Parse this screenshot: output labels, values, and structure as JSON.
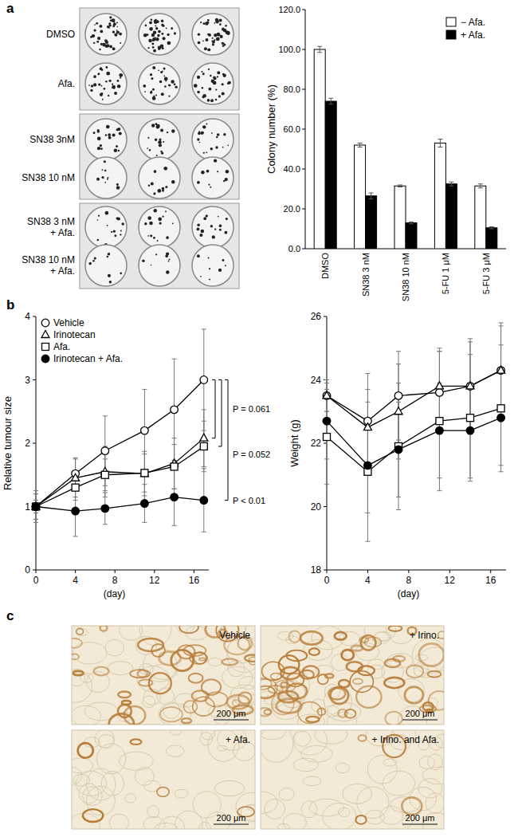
{
  "panel_labels": [
    "a",
    "b",
    "c"
  ],
  "plate_image": {
    "row_labels": [
      [
        "DMSO"
      ],
      [
        "Afa."
      ],
      [
        "SN38 3nM"
      ],
      [
        "SN38 10 nM"
      ],
      [
        "SN38 3 nM",
        "+ Afa."
      ],
      [
        "SN38 10 nM",
        "+ Afa."
      ]
    ]
  },
  "chart_data": [
    {
      "type": "bar",
      "ylabel": "Colony number (%)",
      "categories": [
        "DMSO",
        "SN38 3 nM",
        "SN38 10 nM",
        "5-FU 1 μM",
        "5-FU 3 μM"
      ],
      "series": [
        {
          "name": "− Afa.",
          "color": "#ffffff",
          "values": [
            100,
            52,
            31.5,
            53,
            31.5
          ],
          "errors": [
            1.5,
            1,
            0.5,
            2,
            1
          ]
        },
        {
          "name": "+ Afa.",
          "color": "#000000",
          "values": [
            74,
            26.5,
            13,
            32.5,
            10.5
          ],
          "errors": [
            1.5,
            1.5,
            0.5,
            1,
            0.5
          ]
        }
      ],
      "ylim": [
        0,
        120
      ],
      "yticks": [
        {
          "value": 0,
          "label": "0.0"
        },
        {
          "value": 20,
          "label": "20.0"
        },
        {
          "value": 40,
          "label": "40.0"
        },
        {
          "value": 60,
          "label": "60.0"
        },
        {
          "value": 80,
          "label": "80.0"
        },
        {
          "value": 100,
          "label": "100.0"
        },
        {
          "value": 120,
          "label": "120.0"
        }
      ],
      "legend": "upper right"
    },
    {
      "type": "line",
      "ylabel": "Relative tumour size",
      "xlabel": "(day)",
      "x": [
        0,
        4,
        7,
        11,
        14,
        17
      ],
      "series": [
        {
          "name": "Vehicle",
          "color": "#000000",
          "marker": "circle-open",
          "values": [
            1,
            1.52,
            1.88,
            2.2,
            2.53,
            3.0
          ],
          "errors": [
            0.25,
            0.25,
            0.55,
            0.65,
            0.8,
            0.8
          ]
        },
        {
          "name": "Irinotecan",
          "color": "#000000",
          "marker": "triangle-open",
          "values": [
            1,
            1.45,
            1.55,
            1.52,
            1.68,
            2.08
          ],
          "errors": [
            0.2,
            0.3,
            0.4,
            0.35,
            0.4,
            0.45
          ]
        },
        {
          "name": "Afa.",
          "color": "#000000",
          "marker": "square-open",
          "values": [
            1,
            1.3,
            1.5,
            1.53,
            1.63,
            1.95
          ],
          "errors": [
            0.1,
            0.2,
            0.25,
            0.3,
            0.35,
            0.4
          ]
        },
        {
          "name": "Irinotecan + Afa.",
          "color": "#000000",
          "marker": "circle-filled",
          "values": [
            1,
            0.93,
            0.97,
            1.05,
            1.15,
            1.1
          ],
          "errors": [
            0.2,
            0.4,
            0.25,
            0.3,
            0.45,
            0.5
          ]
        }
      ],
      "xlim": [
        0,
        17.5
      ],
      "xticks": [
        0,
        4,
        8,
        12,
        16
      ],
      "ylim": [
        0,
        4
      ],
      "yticks": [
        0,
        1,
        2,
        3,
        4
      ],
      "legend": "upper left",
      "annotations": [
        "P = 0.061",
        "P = 0.052",
        "P < 0.01"
      ]
    },
    {
      "type": "line",
      "ylabel": "Weight (g)",
      "xlabel": "(day)",
      "x": [
        0,
        4,
        7,
        11,
        14,
        17
      ],
      "series": [
        {
          "color": "#000000",
          "marker": "circle-open",
          "values": [
            23.5,
            22.7,
            23.5,
            23.6,
            23.8,
            24.3
          ],
          "errors": [
            0.5,
            1.5,
            1.4,
            1.3,
            1.5,
            1.5
          ]
        },
        {
          "color": "#000000",
          "marker": "triangle-open",
          "values": [
            23.5,
            22.5,
            23.0,
            23.8,
            23.8,
            24.3
          ],
          "errors": [
            0.5,
            1.2,
            1.5,
            1.2,
            1.4,
            1.4
          ]
        },
        {
          "color": "#000000",
          "marker": "square-open",
          "values": [
            22.2,
            21.1,
            21.9,
            22.7,
            22.8,
            23.1
          ],
          "errors": [
            1.5,
            2.2,
            2.0,
            2.2,
            2.0,
            2.0
          ]
        },
        {
          "color": "#000000",
          "marker": "circle-filled",
          "values": [
            22.7,
            21.3,
            21.8,
            22.4,
            22.4,
            22.8
          ],
          "errors": [
            1.2,
            1.5,
            1.5,
            1.5,
            1.5,
            1.5
          ]
        }
      ],
      "xlim": [
        0,
        17.5
      ],
      "xticks": [
        0,
        4,
        8,
        12,
        16
      ],
      "ylim": [
        18,
        26
      ],
      "yticks": [
        18,
        20,
        22,
        24,
        26
      ]
    }
  ],
  "ihc_images": {
    "panels": [
      {
        "label": "Vehicle",
        "scale_bar": "200 μm"
      },
      {
        "label": "+ Irino.",
        "scale_bar": "200 μm"
      },
      {
        "label": "+ Afa.",
        "scale_bar": "200 μm"
      },
      {
        "label": "+ Irino. and Afa.",
        "scale_bar": "200 μm"
      }
    ]
  }
}
